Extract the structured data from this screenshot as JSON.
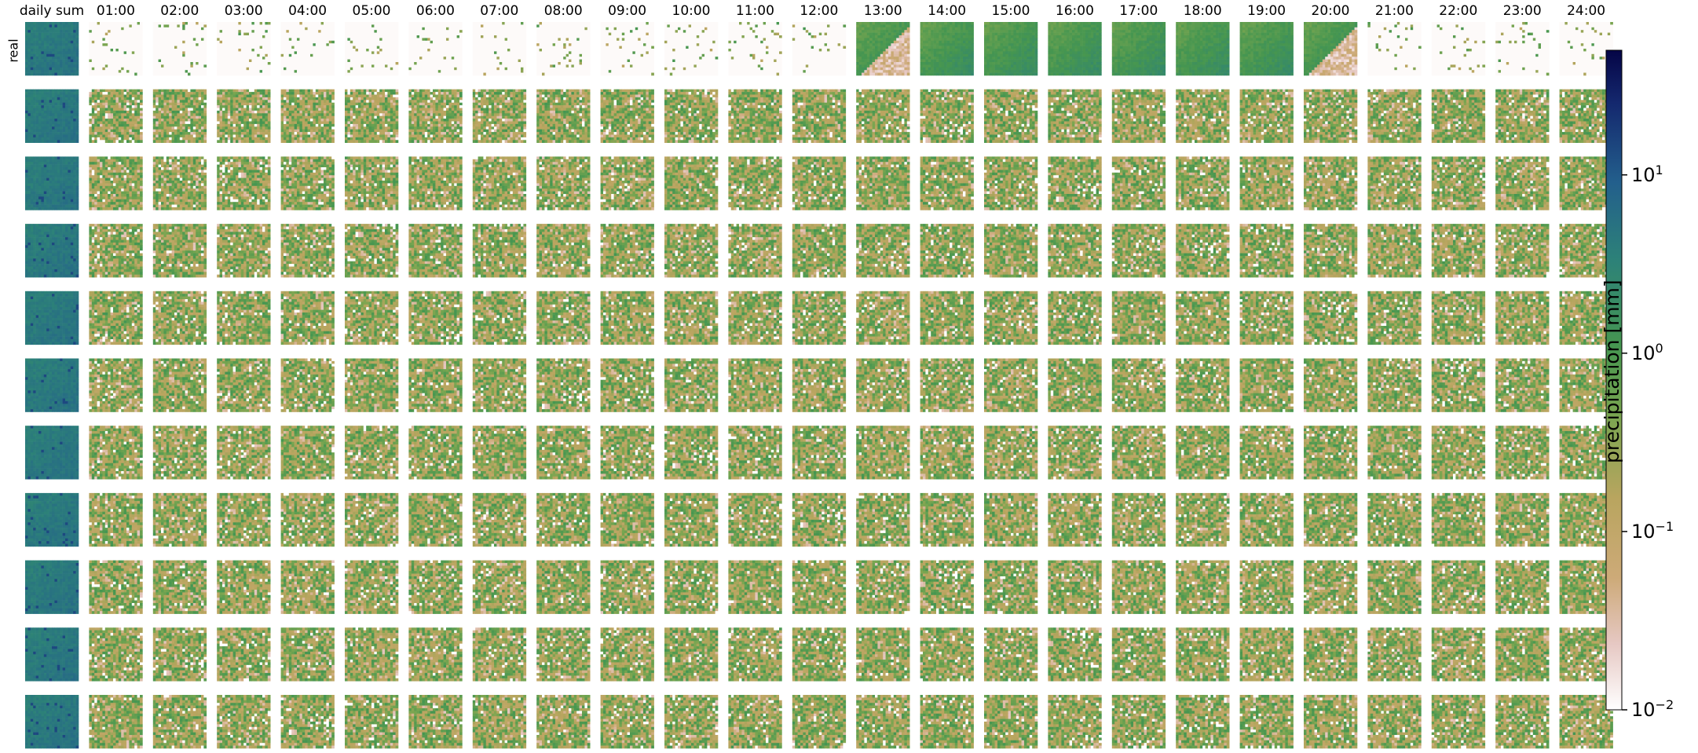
{
  "chart_data": {
    "type": "heatmap",
    "title": "",
    "row_label": "real",
    "rows": 11,
    "columns": [
      "daily sum",
      "01:00",
      "02:00",
      "03:00",
      "04:00",
      "05:00",
      "06:00",
      "07:00",
      "08:00",
      "09:00",
      "10:00",
      "11:00",
      "12:00",
      "13:00",
      "14:00",
      "15:00",
      "16:00",
      "17:00",
      "18:00",
      "19:00",
      "20:00",
      "21:00",
      "22:00",
      "23:00",
      "24:00"
    ],
    "colorbar": {
      "label": "precipitation [mm]",
      "scale": "log",
      "range": [
        0.01,
        50
      ],
      "ticks": [
        {
          "value": 10,
          "base": "10",
          "exp": "1"
        },
        {
          "value": 1,
          "base": "10",
          "exp": "0"
        },
        {
          "value": 0.1,
          "base": "10",
          "exp": "−1"
        },
        {
          "value": 0.01,
          "base": "10",
          "exp": "−2"
        }
      ],
      "colormap": "gist_earth_r"
    },
    "real_row_wet_hours": [
      "13:00",
      "14:00",
      "15:00",
      "16:00",
      "17:00",
      "18:00",
      "19:00",
      "20:00"
    ],
    "grid_cells_per_panel": 20
  }
}
